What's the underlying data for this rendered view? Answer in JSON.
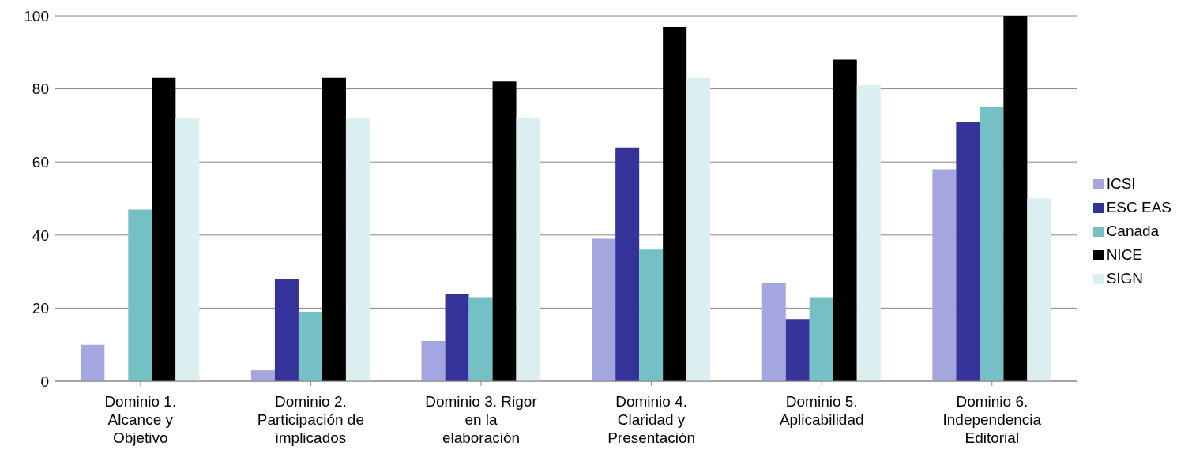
{
  "chart_data": {
    "type": "bar",
    "categories": [
      "Dominio 1. Alcance y Objetivo",
      "Dominio 2. Participación de implicados",
      "Dominio 3. Rigor en la elaboración",
      "Dominio 4. Claridad y Presentación",
      "Dominio 5. Aplicabilidad",
      "Dominio 6. Independencia Editorial"
    ],
    "series": [
      {
        "name": "ICSI",
        "color": "#a5a5e0",
        "values": [
          10,
          3,
          11,
          39,
          27,
          58
        ]
      },
      {
        "name": "ESC EAS",
        "color": "#333399",
        "values": [
          0,
          28,
          24,
          64,
          17,
          71
        ]
      },
      {
        "name": "Canada",
        "color": "#74c0c4",
        "values": [
          47,
          19,
          23,
          36,
          23,
          75
        ]
      },
      {
        "name": "NICE",
        "color": "#000000",
        "values": [
          83,
          83,
          82,
          97,
          88,
          100
        ]
      },
      {
        "name": "SIGN",
        "color": "#dbeef0",
        "values": [
          72,
          72,
          72,
          83,
          81,
          50
        ]
      }
    ],
    "ylim": [
      0,
      100
    ],
    "yticks": [
      0,
      20,
      40,
      60,
      80,
      100
    ],
    "grid": "y",
    "legend": "right"
  }
}
